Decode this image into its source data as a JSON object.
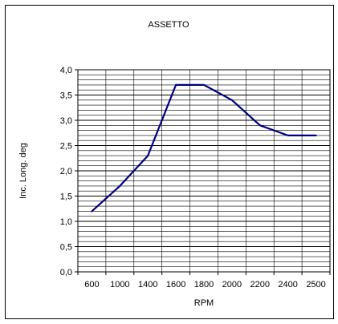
{
  "chart_data": {
    "type": "line",
    "title": "ASSETTO",
    "xlabel": "RPM",
    "ylabel": "Inc. Long. deg",
    "x_tick_labels": [
      "600",
      "1000",
      "1400",
      "1600",
      "1800",
      "2000",
      "2200",
      "2400",
      "2500"
    ],
    "y_tick_labels": [
      "0,0",
      "0,5",
      "1,0",
      "1,5",
      "2,0",
      "2,5",
      "3,0",
      "3,5",
      "4,0"
    ],
    "ylim": [
      0,
      4.0
    ],
    "y_major_step": 0.5,
    "y_minor_step": 0.1,
    "grid": true,
    "legend": false,
    "series": [
      {
        "x": [
          "600",
          "1000",
          "1400",
          "1600",
          "1800",
          "2000",
          "2200",
          "2400",
          "2500"
        ],
        "values": [
          1.2,
          1.7,
          2.3,
          3.7,
          3.7,
          3.4,
          2.9,
          2.7,
          2.7
        ],
        "color": "#000080"
      }
    ]
  }
}
